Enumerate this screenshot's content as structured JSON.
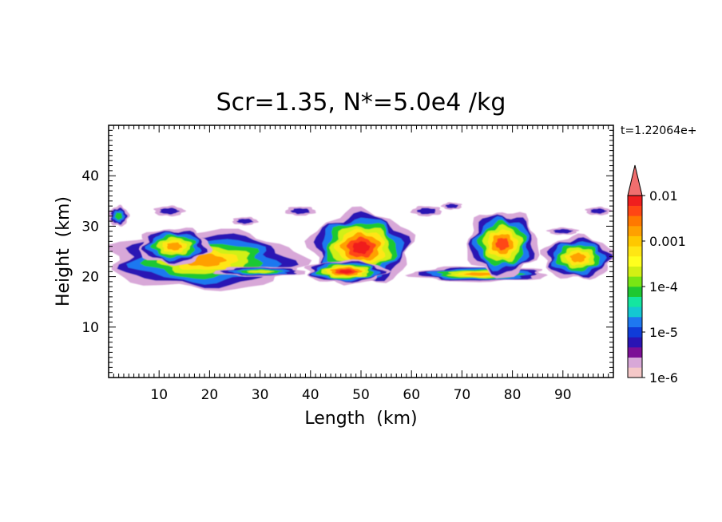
{
  "chart_data": {
    "type": "heatmap",
    "title": "Scr=1.35, N*=5.0e4 /kg",
    "corner_label": "t=1.22064e+",
    "xlabel": "Length  (km)",
    "ylabel": "Height  (km)",
    "xlim": [
      0,
      100
    ],
    "ylim": [
      0,
      50
    ],
    "x_ticks": [
      10,
      20,
      30,
      40,
      50,
      60,
      70,
      80,
      90
    ],
    "y_ticks": [
      10,
      20,
      30,
      40
    ],
    "x_tick_labels": [
      "10",
      "20",
      "30",
      "40",
      "50",
      "60",
      "70",
      "80",
      "90"
    ],
    "y_tick_labels": [
      "10",
      "20",
      "30",
      "40"
    ],
    "grid": false,
    "colorbar": {
      "scale": "log",
      "range": [
        1e-06,
        0.01
      ],
      "labels": [
        "0.01",
        "0.001",
        "1e-4",
        "1e-5",
        "1e-6"
      ],
      "colors": [
        "#f5c8c8",
        "#d8a8d8",
        "#7c0f96",
        "#2a14b4",
        "#0f3cd8",
        "#1e78f0",
        "#14c8d2",
        "#14e6a0",
        "#1ec832",
        "#78e614",
        "#d2f014",
        "#ffff1e",
        "#ffe614",
        "#ffc800",
        "#ffa000",
        "#ff7800",
        "#ff4614",
        "#f01e1e"
      ],
      "extend_top_color": "#f06e6e"
    },
    "regions": [
      {
        "name": "left-layer",
        "x_range": [
          0,
          38
        ],
        "z_range": [
          17.5,
          29
        ],
        "peak": 0.003
      },
      {
        "name": "left-top-patch",
        "x_range": [
          0,
          4
        ],
        "z_range": [
          30,
          34
        ],
        "peak": 0.0001
      },
      {
        "name": "central-cell",
        "x_range": [
          40,
          60
        ],
        "z_range": [
          18.5,
          33
        ],
        "peak": 0.01
      },
      {
        "name": "central-anvil-band",
        "x_range": [
          60,
          87
        ],
        "z_range": [
          19,
          22
        ],
        "peak": 0.003
      },
      {
        "name": "right-cell",
        "x_range": [
          71,
          85
        ],
        "z_range": [
          20,
          33
        ],
        "peak": 0.005
      },
      {
        "name": "far-right-layer",
        "x_range": [
          86,
          100
        ],
        "z_range": [
          19.5,
          28
        ],
        "peak": 0.002
      },
      {
        "name": "upper-thin-wisps",
        "x_range": [
          5,
          100
        ],
        "z_range": [
          30,
          36
        ],
        "peak": 1e-05
      }
    ]
  }
}
